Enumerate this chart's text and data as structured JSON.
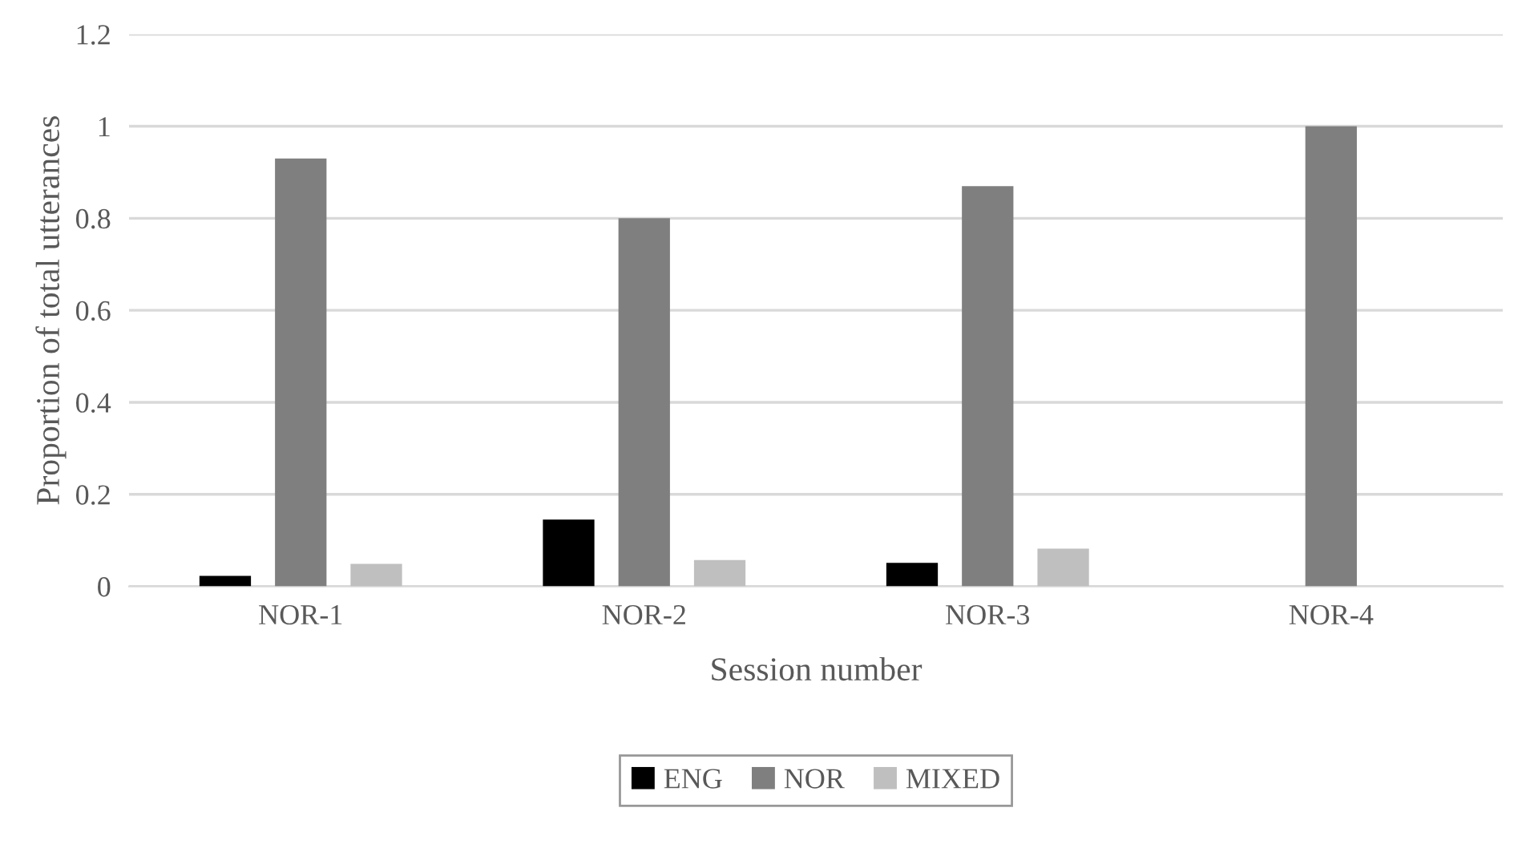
{
  "chart_data": {
    "type": "bar",
    "xlabel": "Session number",
    "ylabel": "Proportion of total utterances",
    "categories": [
      "NOR-1",
      "NOR-2",
      "NOR-3",
      "NOR-4"
    ],
    "series": [
      {
        "name": "ENG",
        "color": "#000000",
        "values": [
          0.023,
          0.145,
          0.051,
          0
        ]
      },
      {
        "name": "NOR",
        "color": "#7f7f7f",
        "values": [
          0.93,
          0.8,
          0.87,
          1.0
        ]
      },
      {
        "name": "MIXED",
        "color": "#bfbfbf",
        "values": [
          0.049,
          0.057,
          0.082,
          0
        ]
      }
    ],
    "ylim": [
      0,
      1.2
    ],
    "yticks": [
      0,
      0.2,
      0.4,
      0.6,
      0.8,
      1,
      1.2
    ],
    "grid": "y",
    "legend": "bottom"
  }
}
